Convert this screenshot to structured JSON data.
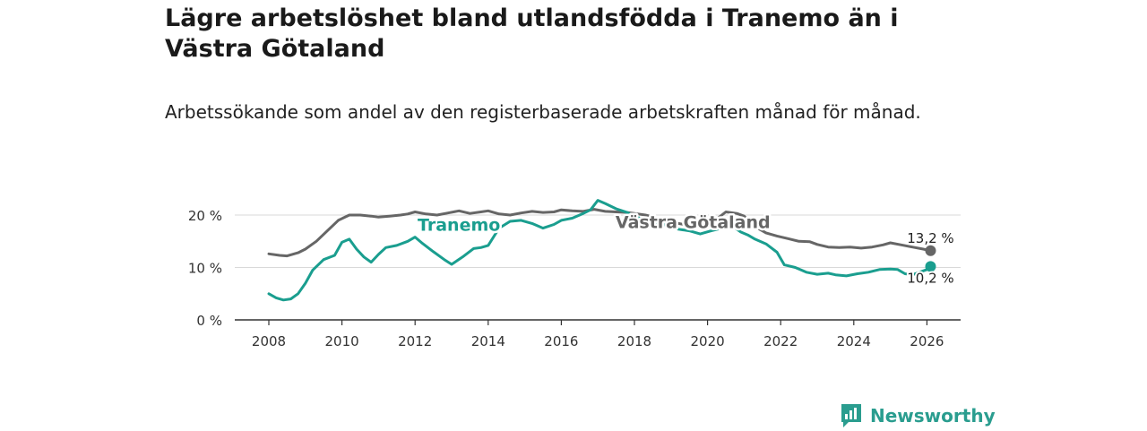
{
  "title": "Lägre arbetslöshet bland utlandsfödda i Tranemo än i Västra Götaland",
  "subtitle": "Arbetssökande som andel av den registerbaserade arbetskraften månad för månad.",
  "brand": {
    "name": "Newsworthy",
    "icon": "bar-chart-speech-bubble-icon",
    "color": "#2a9d8f"
  },
  "chart_data": {
    "type": "line",
    "ylim": [
      0,
      20
    ],
    "xlim": [
      2007.7,
      2027.0
    ],
    "y_ticks": [
      0,
      10,
      20
    ],
    "y_tick_labels": [
      "0 %",
      "10 %",
      "20 %"
    ],
    "x_ticks": [
      2008,
      2010,
      2012,
      2014,
      2016,
      2018,
      2020,
      2022,
      2024,
      2026
    ],
    "x_tick_labels": [
      "2008",
      "2010",
      "2012",
      "2014",
      "2016",
      "2018",
      "2020",
      "2022",
      "2024",
      "2026"
    ],
    "grid": true,
    "series": [
      {
        "name": "Västra Götaland",
        "color": "#666666",
        "end_label": "13,2 %",
        "x": [
          2008.0,
          2008.3,
          2008.5,
          2008.8,
          2009.0,
          2009.3,
          2009.6,
          2009.9,
          2010.2,
          2010.5,
          2010.8,
          2011.0,
          2011.3,
          2011.6,
          2011.8,
          2012.0,
          2012.3,
          2012.6,
          2012.9,
          2013.2,
          2013.5,
          2013.8,
          2014.0,
          2014.3,
          2014.6,
          2014.9,
          2015.2,
          2015.5,
          2015.8,
          2016.0,
          2016.3,
          2016.6,
          2016.9,
          2017.2,
          2017.5,
          2017.8,
          2018.0,
          2018.3,
          2018.6,
          2018.9,
          2019.2,
          2019.5,
          2019.8,
          2020.1,
          2020.3,
          2020.5,
          2020.8,
          2021.0,
          2021.3,
          2021.6,
          2021.9,
          2022.2,
          2022.5,
          2022.8,
          2023.0,
          2023.3,
          2023.6,
          2023.9,
          2024.2,
          2024.5,
          2024.8,
          2025.0,
          2025.3,
          2025.6,
          2025.9,
          2026.1
        ],
        "y": [
          12.6,
          12.3,
          12.2,
          12.8,
          13.5,
          15.0,
          17.0,
          19.0,
          20.0,
          20.0,
          19.8,
          19.6,
          19.8,
          20.0,
          20.2,
          20.6,
          20.2,
          20.0,
          20.4,
          20.8,
          20.3,
          20.6,
          20.8,
          20.2,
          20.0,
          20.4,
          20.7,
          20.5,
          20.6,
          21.0,
          20.8,
          20.7,
          21.1,
          20.7,
          20.6,
          20.5,
          20.3,
          20.0,
          19.5,
          18.8,
          18.4,
          18.0,
          17.6,
          17.9,
          19.5,
          20.6,
          20.3,
          19.8,
          17.8,
          16.6,
          16.0,
          15.5,
          15.0,
          14.9,
          14.4,
          13.9,
          13.8,
          13.9,
          13.7,
          13.9,
          14.3,
          14.7,
          14.3,
          13.9,
          13.5,
          13.2
        ]
      },
      {
        "name": "Tranemo",
        "color": "#1a9e8f",
        "end_label": "10,2 %",
        "x": [
          2008.0,
          2008.2,
          2008.4,
          2008.6,
          2008.8,
          2009.0,
          2009.2,
          2009.5,
          2009.8,
          2010.0,
          2010.2,
          2010.4,
          2010.6,
          2010.8,
          2011.0,
          2011.2,
          2011.5,
          2011.8,
          2012.0,
          2012.2,
          2012.5,
          2012.8,
          2013.0,
          2013.3,
          2013.6,
          2013.8,
          2014.0,
          2014.3,
          2014.6,
          2014.9,
          2015.2,
          2015.5,
          2015.8,
          2016.0,
          2016.3,
          2016.6,
          2016.8,
          2017.0,
          2017.2,
          2017.5,
          2017.8,
          2018.0,
          2018.3,
          2018.6,
          2018.9,
          2019.2,
          2019.5,
          2019.8,
          2020.1,
          2020.4,
          2020.7,
          2020.9,
          2021.1,
          2021.3,
          2021.6,
          2021.9,
          2022.1,
          2022.4,
          2022.7,
          2023.0,
          2023.3,
          2023.5,
          2023.8,
          2024.1,
          2024.4,
          2024.7,
          2025.0,
          2025.2,
          2025.4,
          2025.6,
          2025.8,
          2026.0,
          2026.1
        ],
        "y": [
          5.0,
          4.2,
          3.8,
          4.0,
          5.0,
          7.0,
          9.5,
          11.5,
          12.3,
          14.8,
          15.4,
          13.5,
          12.0,
          11.0,
          12.5,
          13.8,
          14.2,
          15.0,
          15.8,
          14.6,
          13.0,
          11.5,
          10.6,
          12.0,
          13.6,
          13.8,
          14.2,
          17.5,
          18.8,
          19.0,
          18.4,
          17.5,
          18.2,
          19.0,
          19.4,
          20.3,
          21.0,
          22.8,
          22.2,
          21.2,
          20.5,
          19.8,
          19.0,
          18.5,
          18.0,
          17.3,
          17.0,
          16.4,
          17.0,
          17.5,
          17.8,
          16.8,
          16.2,
          15.4,
          14.5,
          12.9,
          10.5,
          10.0,
          9.1,
          8.7,
          8.9,
          8.6,
          8.4,
          8.8,
          9.1,
          9.6,
          9.7,
          9.6,
          8.8,
          8.6,
          9.1,
          9.6,
          10.2
        ]
      }
    ],
    "inline_labels": [
      {
        "text": "Tranemo",
        "series": "Tranemo",
        "color": "#1a9e8f",
        "at_x": 2013.2,
        "at_y": 17.0
      },
      {
        "text": "Västra Götaland",
        "series": "Västra Götaland",
        "color": "#666666",
        "at_x": 2019.6,
        "at_y": 17.5
      }
    ]
  }
}
